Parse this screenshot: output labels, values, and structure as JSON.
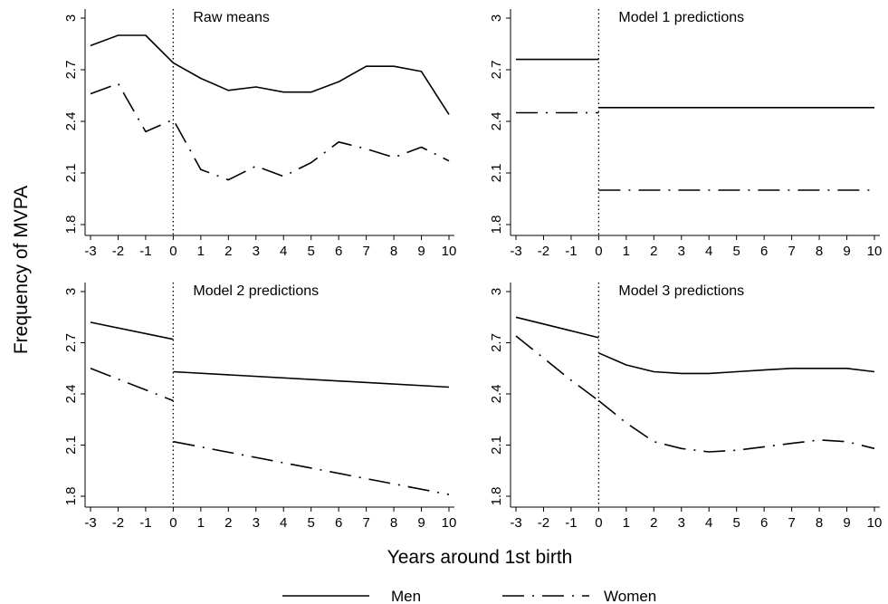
{
  "chart_data": {
    "type": "line",
    "ylabel": "Frequency of MVPA",
    "xlabel": "Years around 1st birth",
    "x_ticks": [
      -3,
      -2,
      -1,
      0,
      1,
      2,
      3,
      4,
      5,
      6,
      7,
      8,
      9,
      10
    ],
    "y_ticks": [
      1.8,
      2.1,
      2.4,
      2.7,
      3
    ],
    "y_tick_labels": [
      "1.8",
      "2.1",
      "2.4",
      "2.7",
      "3"
    ],
    "xlim": [
      -3,
      10
    ],
    "ylim": [
      1.8,
      3.0
    ],
    "vertical_reference_line": 0,
    "legend": [
      {
        "name": "Men",
        "style": "solid"
      },
      {
        "name": "Women",
        "style": "dash-dot"
      }
    ],
    "legend_position": "bottom-center",
    "panels": [
      {
        "title": "Raw means",
        "series": [
          {
            "name": "Men",
            "style": "solid",
            "segments": [
              {
                "x": [
                  -3,
                  -2,
                  -1,
                  0,
                  1,
                  2,
                  3,
                  4,
                  5,
                  6,
                  7,
                  8,
                  9,
                  10
                ],
                "y": [
                  2.84,
                  2.9,
                  2.9,
                  2.74,
                  2.65,
                  2.58,
                  2.6,
                  2.57,
                  2.57,
                  2.63,
                  2.72,
                  2.72,
                  2.69,
                  2.44
                ]
              }
            ]
          },
          {
            "name": "Women",
            "style": "dash-dot",
            "segments": [
              {
                "x": [
                  -3,
                  -2,
                  -1,
                  0,
                  1,
                  2,
                  3,
                  4,
                  5,
                  6,
                  7,
                  8,
                  9,
                  10
                ],
                "y": [
                  2.56,
                  2.62,
                  2.34,
                  2.41,
                  2.12,
                  2.06,
                  2.14,
                  2.08,
                  2.16,
                  2.28,
                  2.24,
                  2.19,
                  2.25,
                  2.17
                ]
              }
            ]
          }
        ]
      },
      {
        "title": "Model 1 predictions",
        "series": [
          {
            "name": "Men",
            "style": "solid",
            "segments": [
              {
                "x": [
                  -3,
                  0
                ],
                "y": [
                  2.76,
                  2.76
                ]
              },
              {
                "x": [
                  0,
                  10
                ],
                "y": [
                  2.48,
                  2.48
                ]
              }
            ]
          },
          {
            "name": "Women",
            "style": "dash-dot",
            "segments": [
              {
                "x": [
                  -3,
                  0
                ],
                "y": [
                  2.45,
                  2.45
                ]
              },
              {
                "x": [
                  0,
                  10
                ],
                "y": [
                  2.0,
                  2.0
                ]
              }
            ]
          }
        ]
      },
      {
        "title": "Model 2 predictions",
        "series": [
          {
            "name": "Men",
            "style": "solid",
            "segments": [
              {
                "x": [
                  -3,
                  0
                ],
                "y": [
                  2.82,
                  2.72
                ]
              },
              {
                "x": [
                  0,
                  10
                ],
                "y": [
                  2.53,
                  2.44
                ]
              }
            ]
          },
          {
            "name": "Women",
            "style": "dash-dot",
            "segments": [
              {
                "x": [
                  -3,
                  0
                ],
                "y": [
                  2.55,
                  2.36
                ]
              },
              {
                "x": [
                  0,
                  10
                ],
                "y": [
                  2.12,
                  1.81
                ]
              }
            ]
          }
        ]
      },
      {
        "title": "Model 3 predictions",
        "series": [
          {
            "name": "Men",
            "style": "solid",
            "segments": [
              {
                "x": [
                  -3,
                  -2,
                  -1,
                  0
                ],
                "y": [
                  2.85,
                  2.81,
                  2.77,
                  2.73
                ]
              },
              {
                "x": [
                  0,
                  1,
                  2,
                  3,
                  4,
                  5,
                  6,
                  7,
                  8,
                  9,
                  10
                ],
                "y": [
                  2.64,
                  2.57,
                  2.53,
                  2.52,
                  2.52,
                  2.53,
                  2.54,
                  2.55,
                  2.55,
                  2.55,
                  2.53
                ]
              }
            ]
          },
          {
            "name": "Women",
            "style": "dash-dot",
            "segments": [
              {
                "x": [
                  -3,
                  -2,
                  -1,
                  0
                ],
                "y": [
                  2.74,
                  2.61,
                  2.48,
                  2.36
                ]
              },
              {
                "x": [
                  0,
                  1,
                  2,
                  3,
                  4,
                  5,
                  6,
                  7,
                  8,
                  9,
                  10
                ],
                "y": [
                  2.36,
                  2.23,
                  2.12,
                  2.08,
                  2.06,
                  2.07,
                  2.09,
                  2.11,
                  2.13,
                  2.12,
                  2.08
                ]
              }
            ]
          }
        ]
      }
    ]
  }
}
